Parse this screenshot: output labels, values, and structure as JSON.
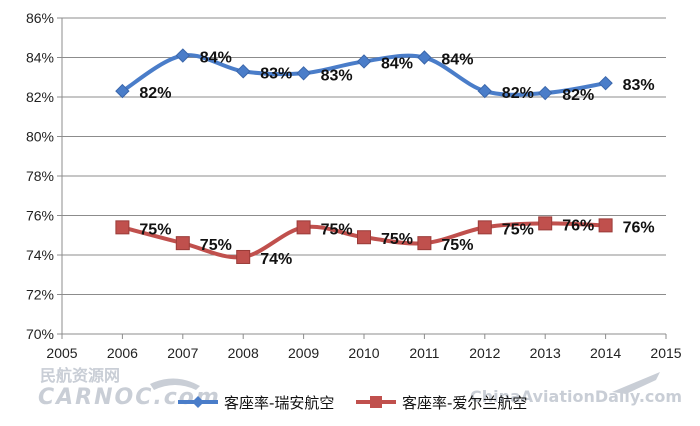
{
  "chart_data": {
    "type": "line",
    "x": [
      2006,
      2007,
      2008,
      2009,
      2010,
      2011,
      2012,
      2013,
      2014
    ],
    "xlim": [
      2005,
      2015
    ],
    "xticks": [
      "2005",
      "2006",
      "2007",
      "2008",
      "2009",
      "2010",
      "2011",
      "2012",
      "2013",
      "2014",
      "2015"
    ],
    "ylim": [
      70,
      86
    ],
    "yticks": [
      "70%",
      "72%",
      "74%",
      "76%",
      "78%",
      "80%",
      "82%",
      "84%",
      "86%"
    ],
    "grid": "horizontal",
    "legend_position": "bottom",
    "series": [
      {
        "name": "客座率-瑞安航空",
        "color": "#4a7dc9",
        "marker": "diamond",
        "values": [
          82.3,
          84.1,
          83.3,
          83.2,
          83.8,
          84.0,
          82.3,
          82.2,
          82.7
        ],
        "labels": [
          "82%",
          "84%",
          "83%",
          "83%",
          "84%",
          "84%",
          "82%",
          "82%",
          "83%"
        ]
      },
      {
        "name": "客座率-爱尔兰航空",
        "color": "#c0504d",
        "marker": "square",
        "values": [
          75.4,
          74.6,
          73.9,
          75.4,
          74.9,
          74.6,
          75.4,
          75.6,
          75.5
        ],
        "labels": [
          "75%",
          "75%",
          "74%",
          "75%",
          "75%",
          "75%",
          "75%",
          "76%",
          "76%"
        ]
      }
    ]
  },
  "watermark": {
    "logo_text_cn": "民航资源网",
    "logo_text_en": "CARNOC.com",
    "right_text": "ChinaAviationDaily.com"
  }
}
